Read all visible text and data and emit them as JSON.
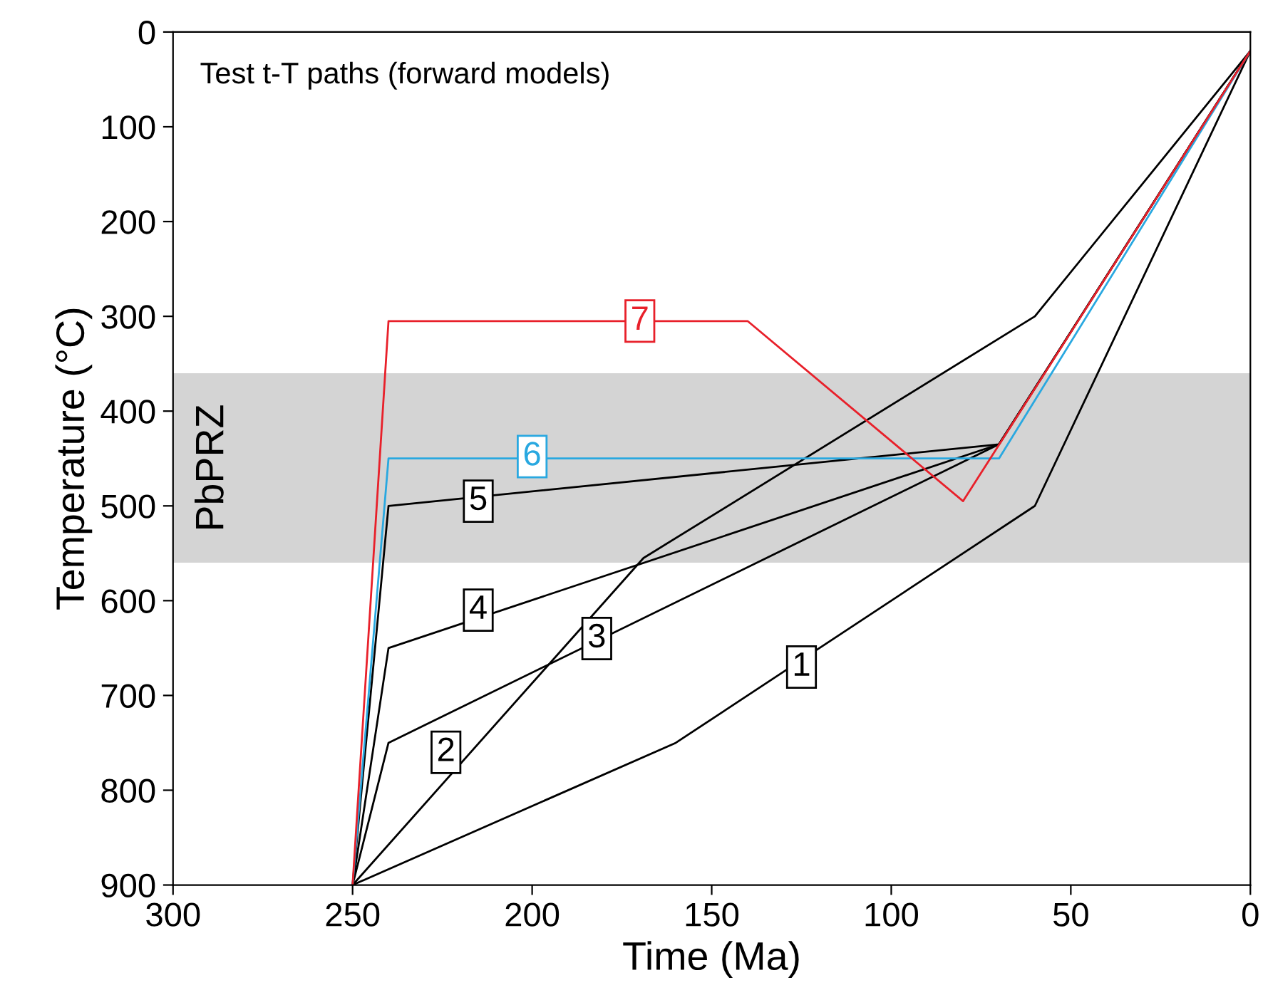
{
  "chart_data": {
    "type": "line",
    "title": "Test t-T paths (forward models)",
    "xlabel": "Time (Ma)",
    "ylabel": "Temperature (°C)",
    "xlim": [
      300,
      0
    ],
    "xticks": [
      300,
      250,
      200,
      150,
      100,
      50,
      0
    ],
    "ylim": [
      900,
      0
    ],
    "yticks": [
      0,
      100,
      200,
      300,
      400,
      500,
      600,
      700,
      800,
      900
    ],
    "grid": false,
    "legend": false,
    "marker": "none",
    "line_style": "solid",
    "bands": [
      {
        "axis": "y",
        "from": 360,
        "to": 560,
        "label": "PbPRZ",
        "color": "#d4d4d4"
      }
    ],
    "series": [
      {
        "color": "#000000",
        "x": [
          250,
          160,
          60,
          0
        ],
        "values": [
          900,
          750,
          500,
          20
        ]
      },
      {
        "color": "#000000",
        "x": [
          250,
          169,
          60,
          0
        ],
        "values": [
          900,
          555,
          300,
          20
        ]
      },
      {
        "color": "#000000",
        "x": [
          250,
          240,
          70,
          0
        ],
        "values": [
          900,
          750,
          435,
          20
        ]
      },
      {
        "color": "#000000",
        "x": [
          250,
          240,
          70,
          0
        ],
        "values": [
          900,
          650,
          435,
          20
        ]
      },
      {
        "color": "#000000",
        "x": [
          250,
          240,
          70,
          0
        ],
        "values": [
          900,
          500,
          435,
          20
        ]
      },
      {
        "color": "#29a8e0",
        "x": [
          250,
          240,
          70,
          0
        ],
        "values": [
          900,
          450,
          450,
          20
        ]
      },
      {
        "color": "#e8202a",
        "x": [
          250,
          240,
          140,
          80,
          0
        ],
        "values": [
          900,
          305,
          305,
          495,
          20
        ]
      }
    ],
    "annotations": [
      {
        "text": "1",
        "x": 125,
        "y": 670
      },
      {
        "text": "2",
        "x": 224,
        "y": 760
      },
      {
        "text": "3",
        "x": 182,
        "y": 640
      },
      {
        "text": "4",
        "x": 215,
        "y": 610
      },
      {
        "text": "5",
        "x": 215,
        "y": 495
      },
      {
        "text": "6",
        "x": 200,
        "y": 448
      },
      {
        "text": "7",
        "x": 170,
        "y": 305
      }
    ]
  }
}
